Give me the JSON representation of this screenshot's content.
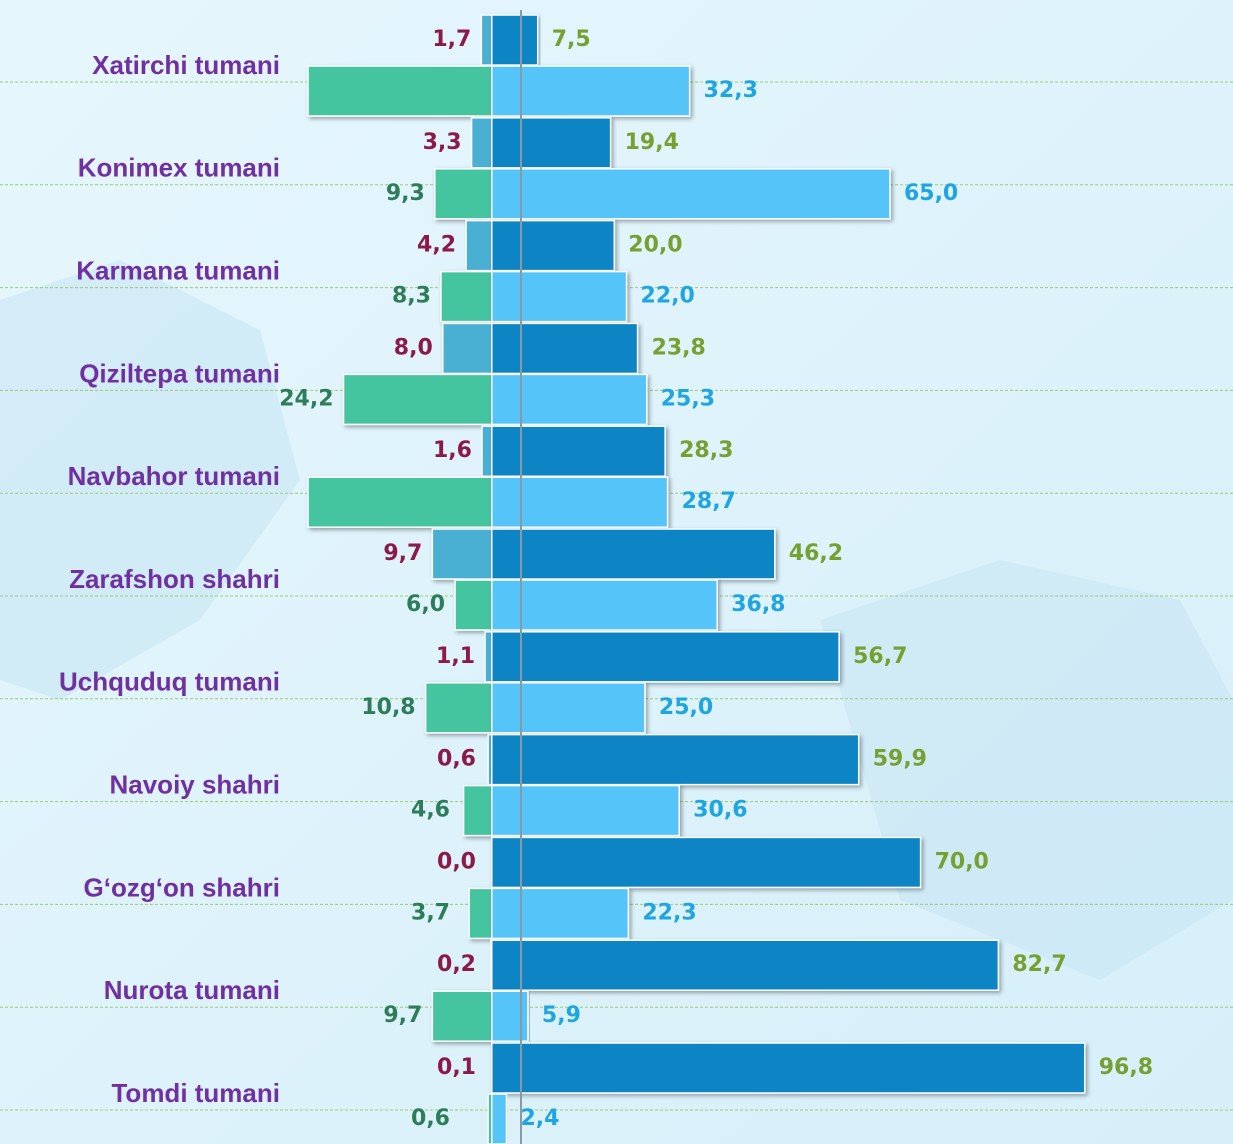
{
  "chart_data": {
    "type": "butterfly_bar",
    "categories": [
      "Xatirchi tumani",
      "Konimex tumani",
      "Karmana tumani",
      "Qiziltepa tumani",
      "Navbahor tumani",
      "Zarafshon shahri",
      "Uchquduq tumani",
      "Navoiy shahri",
      "G‘ozg‘on shahri",
      "Nurota tumani",
      "Tomdi tumani"
    ],
    "xlim": [
      -30,
      121
    ],
    "grid": true,
    "series": [
      {
        "side": "left",
        "row": "top",
        "color": "#4ab0d4",
        "label_color": "#8b1a4a",
        "values": [
          1.7,
          3.3,
          4.2,
          8.0,
          1.6,
          9.7,
          1.1,
          0.6,
          0.0,
          0.2,
          0.1
        ],
        "value_labels": [
          "1,7",
          "3,3",
          "4,2",
          "8,0",
          "1,6",
          "9,7",
          "1,1",
          "0,6",
          "0,0",
          "0,2",
          "0,1"
        ]
      },
      {
        "side": "right",
        "row": "top",
        "color": "#0784c3",
        "label_color": "#76a030",
        "values": [
          7.5,
          19.4,
          20.0,
          23.8,
          28.3,
          46.2,
          56.7,
          59.9,
          70.0,
          82.7,
          96.8
        ],
        "value_labels": [
          "7,5",
          "19,4",
          "20,0",
          "23,8",
          "28,3",
          "46,2",
          "56,7",
          "59,9",
          "70,0",
          "82,7",
          "96,8"
        ]
      },
      {
        "side": "left",
        "row": "bottom",
        "color": "#45c4a0",
        "label_color": "#2e7d5a",
        "values": [
          30,
          9.3,
          8.3,
          24.2,
          30,
          6.0,
          10.8,
          4.6,
          3.7,
          9.7,
          0.6
        ],
        "value_labels": [
          null,
          "9,3",
          "8,3",
          "24,2",
          null,
          "6,0",
          "10,8",
          "4,6",
          "3,7",
          "9,7",
          "0,6"
        ]
      },
      {
        "side": "right",
        "row": "bottom",
        "color": "#55c4f8",
        "label_color": "#1fa5e0",
        "values": [
          32.3,
          65.0,
          22.0,
          25.3,
          28.7,
          36.8,
          25.0,
          30.6,
          22.3,
          5.9,
          2.4
        ],
        "value_labels": [
          "32,3",
          "65,0",
          "22,0",
          "25,3",
          "28,7",
          "36,8",
          "25,0",
          "30,6",
          "22,3",
          "5,9",
          "2,4"
        ]
      }
    ]
  }
}
